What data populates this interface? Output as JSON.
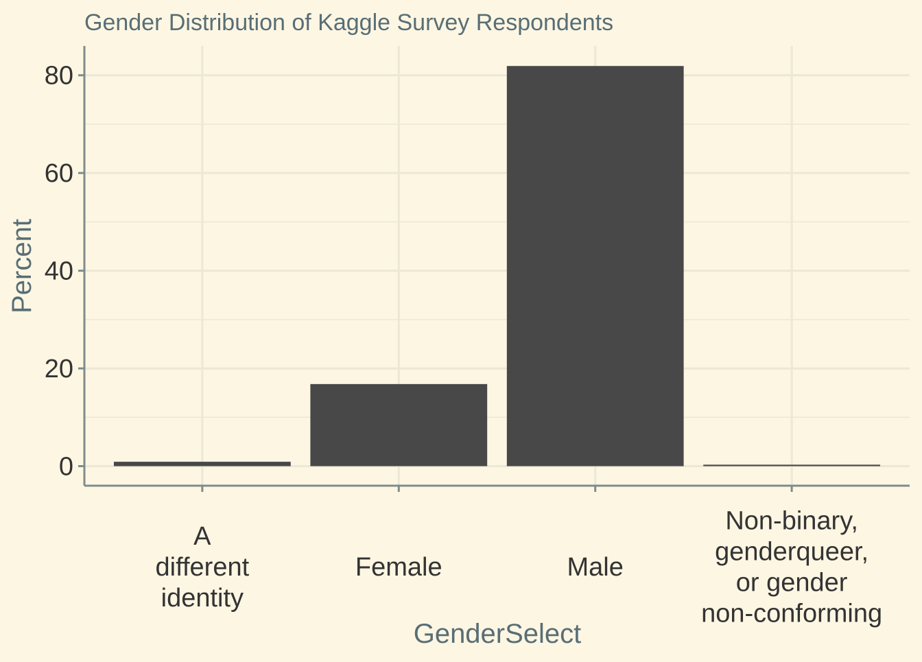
{
  "chart_data": {
    "type": "bar",
    "title": "Gender Distribution of Kaggle Survey Respondents",
    "xlabel": "GenderSelect",
    "ylabel": "Percent",
    "categories": [
      [
        "A",
        "different",
        "identity"
      ],
      [
        "Female"
      ],
      [
        "Male"
      ],
      [
        "Non-binary,",
        "genderqueer,",
        "or gender",
        "non-conforming"
      ]
    ],
    "values": [
      0.9,
      16.8,
      81.9,
      0.3
    ],
    "ylim": [
      -4,
      86
    ],
    "yticks": [
      0,
      20,
      40,
      60,
      80
    ],
    "grid": true,
    "colors": {
      "background": "#fdf6e3",
      "bar": "#484848",
      "grid": "#ece7d6",
      "axis": "#7f8c8d",
      "title": "#586e75",
      "tick_text": "#333333",
      "axis_title": "#586e75"
    }
  }
}
